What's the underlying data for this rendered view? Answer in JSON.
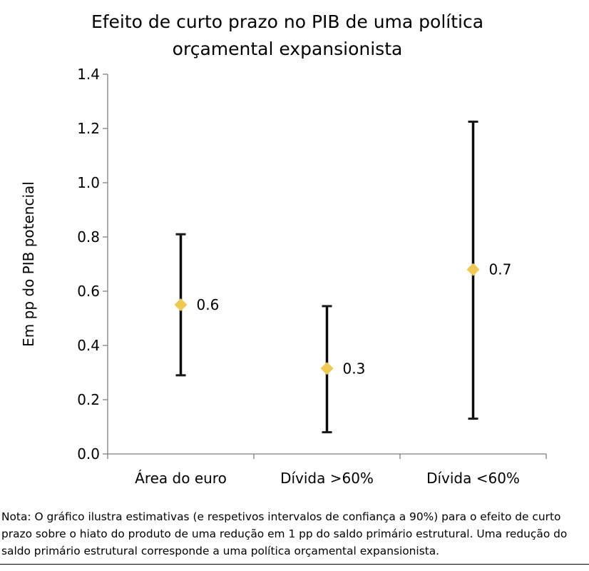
{
  "chart_data": {
    "type": "scatter",
    "title": [
      "Efeito de curto prazo no PIB de uma política",
      "orçamental expansionista"
    ],
    "ylabel": "Em pp do PIB potencial",
    "xlabel": "",
    "ylim": [
      0.0,
      1.4
    ],
    "yticks": [
      "0.0",
      "0.2",
      "0.4",
      "0.6",
      "0.8",
      "1.0",
      "1.2",
      "1.4"
    ],
    "categories": [
      "Área do euro",
      "Dívida >60%",
      "Dívida <60%"
    ],
    "points": [
      {
        "category": "Área do euro",
        "estimate": 0.55,
        "lower": 0.29,
        "upper": 0.81,
        "label": "0.6"
      },
      {
        "category": "Dívida >60%",
        "estimate": 0.315,
        "lower": 0.08,
        "upper": 0.545,
        "label": "0.3"
      },
      {
        "category": "Dívida <60%",
        "estimate": 0.68,
        "lower": 0.13,
        "upper": 1.225,
        "label": "0.7"
      }
    ],
    "marker_color": "#f0c952",
    "errorbar_color": "#000000",
    "grid": false,
    "legend": "none"
  },
  "note": "Nota: O gráfico ilustra estimativas (e respetivos intervalos de confiança a 90%) para o efeito de curto prazo sobre o hiato do produto de uma redução em 1 pp do saldo primário estrutural. Uma redução do saldo primário estrutural corresponde a uma política orçamental expansionista."
}
